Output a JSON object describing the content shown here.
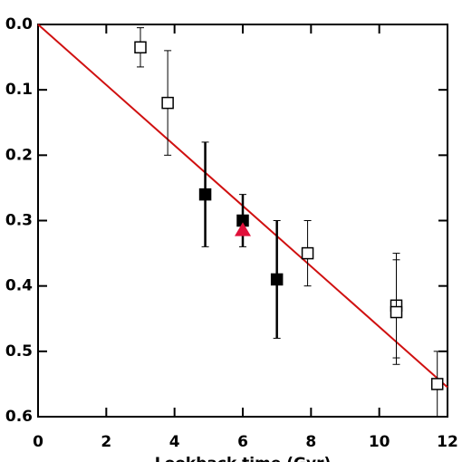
{
  "chart_data": {
    "type": "scatter",
    "xlabel": "Lookback time (Gyr)",
    "xlim": [
      0,
      12
    ],
    "ylim": [
      0,
      0.6
    ],
    "y_inverted": true,
    "xticks": [
      0,
      2,
      4,
      6,
      8,
      10,
      12
    ],
    "yticks": [
      {
        "value": 0,
        "label": "0.0"
      },
      0.1,
      0.2,
      0.3,
      0.4,
      0.5,
      0.6
    ],
    "series": [
      {
        "marker": "open-square",
        "color": "#000000",
        "x": [
          3.0,
          3.8,
          7.9,
          10.5,
          10.5,
          11.7
        ],
        "values": [
          0.035,
          0.12,
          0.35,
          0.43,
          0.44,
          0.55
        ],
        "errors": [
          0.03,
          0.08,
          0.05,
          0.08,
          0.08,
          0.05
        ]
      },
      {
        "marker": "filled-square",
        "color": "#000000",
        "x": [
          4.9,
          6.0,
          7.0
        ],
        "values": [
          0.26,
          0.3,
          0.39
        ],
        "errors": [
          0.08,
          0.04,
          0.09
        ]
      },
      {
        "marker": "triangle",
        "color": "#e0103a",
        "x": [
          6.0
        ],
        "values": [
          0.315
        ]
      },
      {
        "marker": "line",
        "color": "#d01010",
        "x": [
          0,
          12
        ],
        "values": [
          0,
          0.555
        ]
      }
    ]
  }
}
